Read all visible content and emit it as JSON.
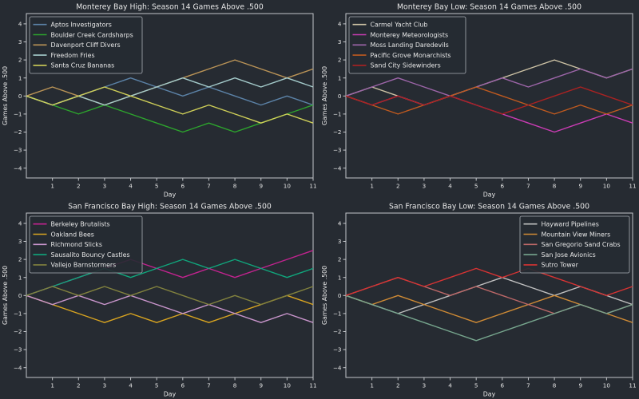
{
  "figure": {
    "background": "#262b32",
    "spine_color": "#c3c6ca",
    "text_color": "#e6e6e6",
    "legend_border_color": "#a9aeb5"
  },
  "chart_data": [
    {
      "type": "line",
      "title": "Monterey Bay High: Season 14 Games Above .500",
      "xlabel": "Day",
      "ylabel": "Games Above .500",
      "x": [
        0,
        1,
        2,
        3,
        4,
        5,
        6,
        7,
        8,
        9,
        10,
        11
      ],
      "xticks": [
        1,
        2,
        3,
        4,
        5,
        6,
        7,
        8,
        9,
        10,
        11
      ],
      "yticks": [
        -4,
        -3,
        -2,
        -1,
        0,
        1,
        2,
        3,
        4
      ],
      "ylim": [
        -4.55,
        4.55
      ],
      "grid": false,
      "legend_position": "upper-left",
      "series": [
        {
          "name": "Aptos Investigators",
          "color": "#5c83a8",
          "values": [
            0,
            -0.5,
            0,
            0.5,
            1,
            0.5,
            0,
            0.5,
            0,
            -0.5,
            0,
            -0.5
          ]
        },
        {
          "name": "Boulder Creek Cardsharps",
          "color": "#2da42d",
          "values": [
            0,
            -0.5,
            -1,
            -0.5,
            -1,
            -1.5,
            -2,
            -1.5,
            -2,
            -1.5,
            -1,
            -0.5
          ]
        },
        {
          "name": "Davenport Cliff Divers",
          "color": "#bb9457",
          "values": [
            0,
            0.5,
            0,
            -0.5,
            0,
            0.5,
            1,
            1.5,
            2,
            1.5,
            1,
            1.5
          ]
        },
        {
          "name": "Freedom Fries",
          "color": "#a5cccc",
          "values": [
            0,
            -0.5,
            0,
            -0.5,
            0,
            0.5,
            1,
            0.5,
            1,
            0.5,
            1,
            0.5
          ]
        },
        {
          "name": "Santa Cruz Bananas",
          "color": "#cfcf58",
          "values": [
            0,
            -0.5,
            0,
            0.5,
            0,
            -0.5,
            -1,
            -0.5,
            -1,
            -1.5,
            -1,
            -1.5
          ]
        }
      ]
    },
    {
      "type": "line",
      "title": "Monterey Bay Low: Season 14 Games Above .500",
      "xlabel": "Day",
      "ylabel": "Games Above .500",
      "x": [
        0,
        1,
        2,
        3,
        4,
        5,
        6,
        7,
        8,
        9,
        10,
        11
      ],
      "xticks": [
        1,
        2,
        3,
        4,
        5,
        6,
        7,
        8,
        9,
        10,
        11
      ],
      "yticks": [
        -4,
        -3,
        -2,
        -1,
        0,
        1,
        2,
        3,
        4
      ],
      "ylim": [
        -4.55,
        4.55
      ],
      "grid": false,
      "legend_position": "upper-left",
      "series": [
        {
          "name": "Carmel Yacht Club",
          "color": "#cfc4a6",
          "values": [
            0,
            0.5,
            0,
            -0.5,
            0,
            0.5,
            1,
            1.5,
            2,
            1.5,
            1,
            1.5
          ]
        },
        {
          "name": "Monterey Meteorologists",
          "color": "#ca3cb4",
          "values": [
            0,
            -0.5,
            0,
            -0.5,
            0,
            -0.5,
            -1,
            -1.5,
            -2,
            -1.5,
            -1,
            -1.5
          ]
        },
        {
          "name": "Moss Landing Daredevils",
          "color": "#9e66aa",
          "values": [
            0,
            0.5,
            1,
            0.5,
            0,
            0.5,
            1,
            0.5,
            1,
            1.5,
            1,
            1.5
          ]
        },
        {
          "name": "Pacific Grove Monarchists",
          "color": "#c05a1f",
          "values": [
            0,
            -0.5,
            -1,
            -0.5,
            0,
            0.5,
            0,
            -0.5,
            -1,
            -0.5,
            -1,
            -0.5
          ]
        },
        {
          "name": "Sand City Sidewinders",
          "color": "#ab2222",
          "values": [
            0,
            -0.5,
            0,
            -0.5,
            0,
            -0.5,
            -1,
            -0.5,
            0,
            0.5,
            0,
            -0.5
          ]
        }
      ]
    },
    {
      "type": "line",
      "title": "San Francisco Bay High: Season 14 Games Above .500",
      "xlabel": "Day",
      "ylabel": "Games Above .500",
      "x": [
        0,
        1,
        2,
        3,
        4,
        5,
        6,
        7,
        8,
        9,
        10,
        11
      ],
      "xticks": [
        1,
        2,
        3,
        4,
        5,
        6,
        7,
        8,
        9,
        10,
        11
      ],
      "yticks": [
        -4,
        -3,
        -2,
        -1,
        0,
        1,
        2,
        3,
        4
      ],
      "ylim": [
        -4.55,
        4.55
      ],
      "grid": false,
      "legend_position": "upper-left",
      "series": [
        {
          "name": "Berkeley Brutalists",
          "color": "#c2238f",
          "values": [
            0,
            0.5,
            1,
            1.5,
            2,
            1.5,
            1,
            1.5,
            1,
            1.5,
            2,
            2.5
          ]
        },
        {
          "name": "Oakland Bees",
          "color": "#daa520",
          "values": [
            0,
            -0.5,
            -1,
            -1.5,
            -1,
            -1.5,
            -1,
            -1.5,
            -1,
            -0.5,
            0,
            -0.5
          ]
        },
        {
          "name": "Richmond Slicks",
          "color": "#ca96cd",
          "values": [
            0,
            -0.5,
            0,
            -0.5,
            0,
            -0.5,
            -1,
            -0.5,
            -1,
            -1.5,
            -1,
            -1.5
          ]
        },
        {
          "name": "Sausalito Bouncy Castles",
          "color": "#10a67c",
          "values": [
            0,
            0.5,
            1,
            1.5,
            1,
            1.5,
            2,
            1.5,
            2,
            1.5,
            1,
            1.5
          ]
        },
        {
          "name": "Vallejo Barnstormers",
          "color": "#82823e",
          "values": [
            0,
            0.5,
            0,
            0.5,
            0,
            0.5,
            0,
            -0.5,
            0,
            -0.5,
            0,
            0.5
          ]
        }
      ]
    },
    {
      "type": "line",
      "title": "San Francisco Bay Low: Season 14 Games Above .500",
      "xlabel": "Day",
      "ylabel": "Games Above .500",
      "x": [
        0,
        1,
        2,
        3,
        4,
        5,
        6,
        7,
        8,
        9,
        10,
        11
      ],
      "xticks": [
        1,
        2,
        3,
        4,
        5,
        6,
        7,
        8,
        9,
        10,
        11
      ],
      "yticks": [
        -4,
        -3,
        -2,
        -1,
        0,
        1,
        2,
        3,
        4
      ],
      "ylim": [
        -4.55,
        4.55
      ],
      "grid": false,
      "legend_position": "upper-right",
      "series": [
        {
          "name": "Hayward Pipelines",
          "color": "#c0c0c0",
          "values": [
            0,
            -0.5,
            -1,
            -0.5,
            0,
            0.5,
            1,
            0.5,
            0,
            0.5,
            0,
            -0.5
          ]
        },
        {
          "name": "Mountain View Miners",
          "color": "#d08b35",
          "values": [
            0,
            -0.5,
            0,
            -0.5,
            -1,
            -1.5,
            -1,
            -0.5,
            0,
            -0.5,
            -1,
            -1.5
          ]
        },
        {
          "name": "San Gregorio Sand Crabs",
          "color": "#bd6868",
          "values": [
            0,
            0.5,
            1,
            0.5,
            0,
            0.5,
            0,
            -0.5,
            -1,
            -0.5,
            -1,
            -0.5
          ]
        },
        {
          "name": "San Jose Avionics",
          "color": "#77a68e",
          "values": [
            0,
            -0.5,
            -1,
            -1.5,
            -2,
            -2.5,
            -2,
            -1.5,
            -1,
            -0.5,
            -1,
            -0.5
          ]
        },
        {
          "name": "Sutro Tower",
          "color": "#d63333",
          "values": [
            0,
            0.5,
            1,
            0.5,
            1,
            1.5,
            1,
            1.5,
            1,
            0.5,
            0,
            0.5
          ]
        }
      ]
    }
  ]
}
